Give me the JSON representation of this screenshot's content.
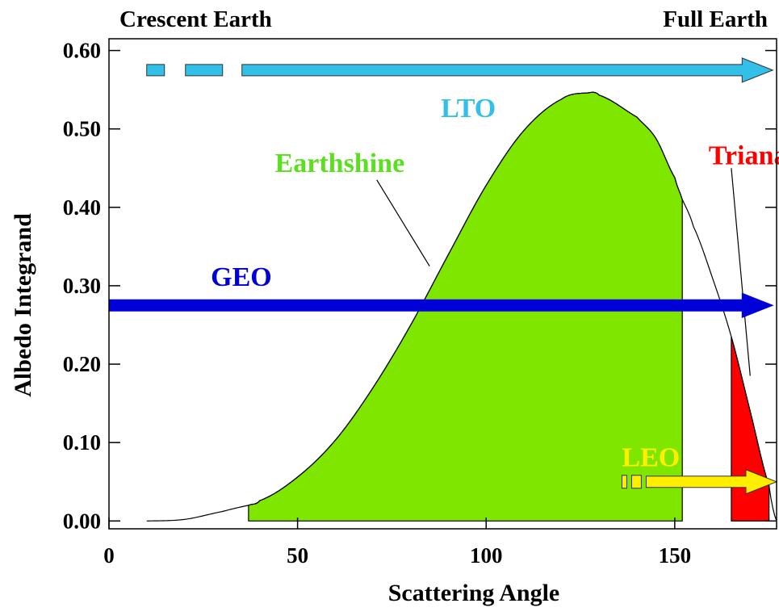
{
  "chart_data": {
    "type": "area",
    "title": "",
    "xlabel": "Scattering Angle",
    "ylabel": "Albedo Integrand",
    "xlim": [
      0,
      177
    ],
    "ylim": [
      -0.01,
      0.615
    ],
    "xticks": [
      0,
      50,
      100,
      150
    ],
    "xtick_labels": [
      "0",
      "50",
      "100",
      "150"
    ],
    "yticks": [
      0.0,
      0.1,
      0.2,
      0.3,
      0.4,
      0.5,
      0.6
    ],
    "ytick_labels": [
      "0.00",
      "0.10",
      "0.20",
      "0.30",
      "0.40",
      "0.50",
      "0.60"
    ],
    "grid": false,
    "legend": "none",
    "corner_labels": {
      "left": "Crescent Earth",
      "right": "Full Earth"
    },
    "curve": {
      "x": [
        10,
        20,
        30,
        37,
        40,
        50,
        60,
        70,
        80,
        90,
        100,
        110,
        120,
        127,
        130,
        140,
        145,
        150,
        152,
        155,
        160,
        165,
        170,
        175,
        177
      ],
      "y": [
        0.0,
        0.002,
        0.012,
        0.02,
        0.026,
        0.056,
        0.103,
        0.17,
        0.25,
        0.34,
        0.428,
        0.498,
        0.538,
        0.546,
        0.543,
        0.515,
        0.488,
        0.438,
        0.41,
        0.375,
        0.31,
        0.235,
        0.14,
        0.045,
        0.0
      ]
    },
    "regions": [
      {
        "name": "Earthshine",
        "x_range": [
          37,
          152
        ],
        "color": "#7fe600",
        "label_color": "#5ae01e"
      },
      {
        "name": "Triana",
        "x_range": [
          165,
          175
        ],
        "color": "#ff0000",
        "label_color": "#ff0000"
      }
    ],
    "orbits": [
      {
        "name": "LTO",
        "y": 0.575,
        "x_start": 10,
        "x_end": 176,
        "style": "dashed-start",
        "color": "#33c0e8",
        "label_pos": {
          "x": 88,
          "y": 0.515
        }
      },
      {
        "name": "GEO",
        "y": 0.275,
        "x_start": 0,
        "x_end": 176,
        "style": "solid",
        "color": "#0000d8",
        "label_pos": {
          "x": 27,
          "y": 0.3
        }
      },
      {
        "name": "LEO",
        "y": 0.05,
        "x_start": 136,
        "x_end": 177,
        "style": "dashed-start",
        "color": "#ffee00",
        "label_pos": {
          "x": 136,
          "y": 0.07
        }
      }
    ],
    "annotation_lines": [
      {
        "from": [
          71,
          0.435
        ],
        "to": [
          85,
          0.325
        ],
        "for": "Earthshine"
      },
      {
        "from": [
          165,
          0.45
        ],
        "to": [
          170,
          0.185
        ],
        "for": "Triana"
      }
    ]
  },
  "colors": {
    "text": "#000000",
    "earthshine_fill": "#7fe600",
    "triana_fill": "#ff0000",
    "lto": "#33c0e8",
    "geo": "#0000d8",
    "leo": "#ffee00"
  }
}
